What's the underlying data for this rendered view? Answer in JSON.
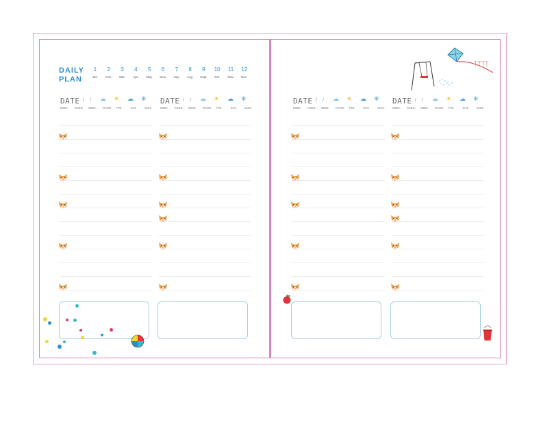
{
  "planner": {
    "title_line1": "DAILY",
    "title_line2": "PLAN",
    "months": [
      {
        "num": "1",
        "abbr": "Jan."
      },
      {
        "num": "2",
        "abbr": "Feb."
      },
      {
        "num": "3",
        "abbr": "Mar."
      },
      {
        "num": "4",
        "abbr": "Apr."
      },
      {
        "num": "5",
        "abbr": "May."
      },
      {
        "num": "6",
        "abbr": "June."
      },
      {
        "num": "7",
        "abbr": "July."
      },
      {
        "num": "8",
        "abbr": "Aug."
      },
      {
        "num": "9",
        "abbr": "Sept."
      },
      {
        "num": "10",
        "abbr": "Oct."
      },
      {
        "num": "11",
        "abbr": "Nov."
      },
      {
        "num": "12",
        "abbr": "Dec."
      }
    ],
    "date_label": "DATE",
    "date_separator": "/",
    "weekdays": [
      "MON.",
      "TUES.",
      "WED.",
      "THUR.",
      "FRI.",
      "SAT.",
      "SUN."
    ],
    "weather_icons": [
      "cloud-icon",
      "sun-icon",
      "rain-cloud-icon",
      "snowflake-icon"
    ],
    "colors": {
      "accent": "#2a8fd0",
      "border": "#d986bd",
      "box": "#a8cfe2"
    }
  }
}
